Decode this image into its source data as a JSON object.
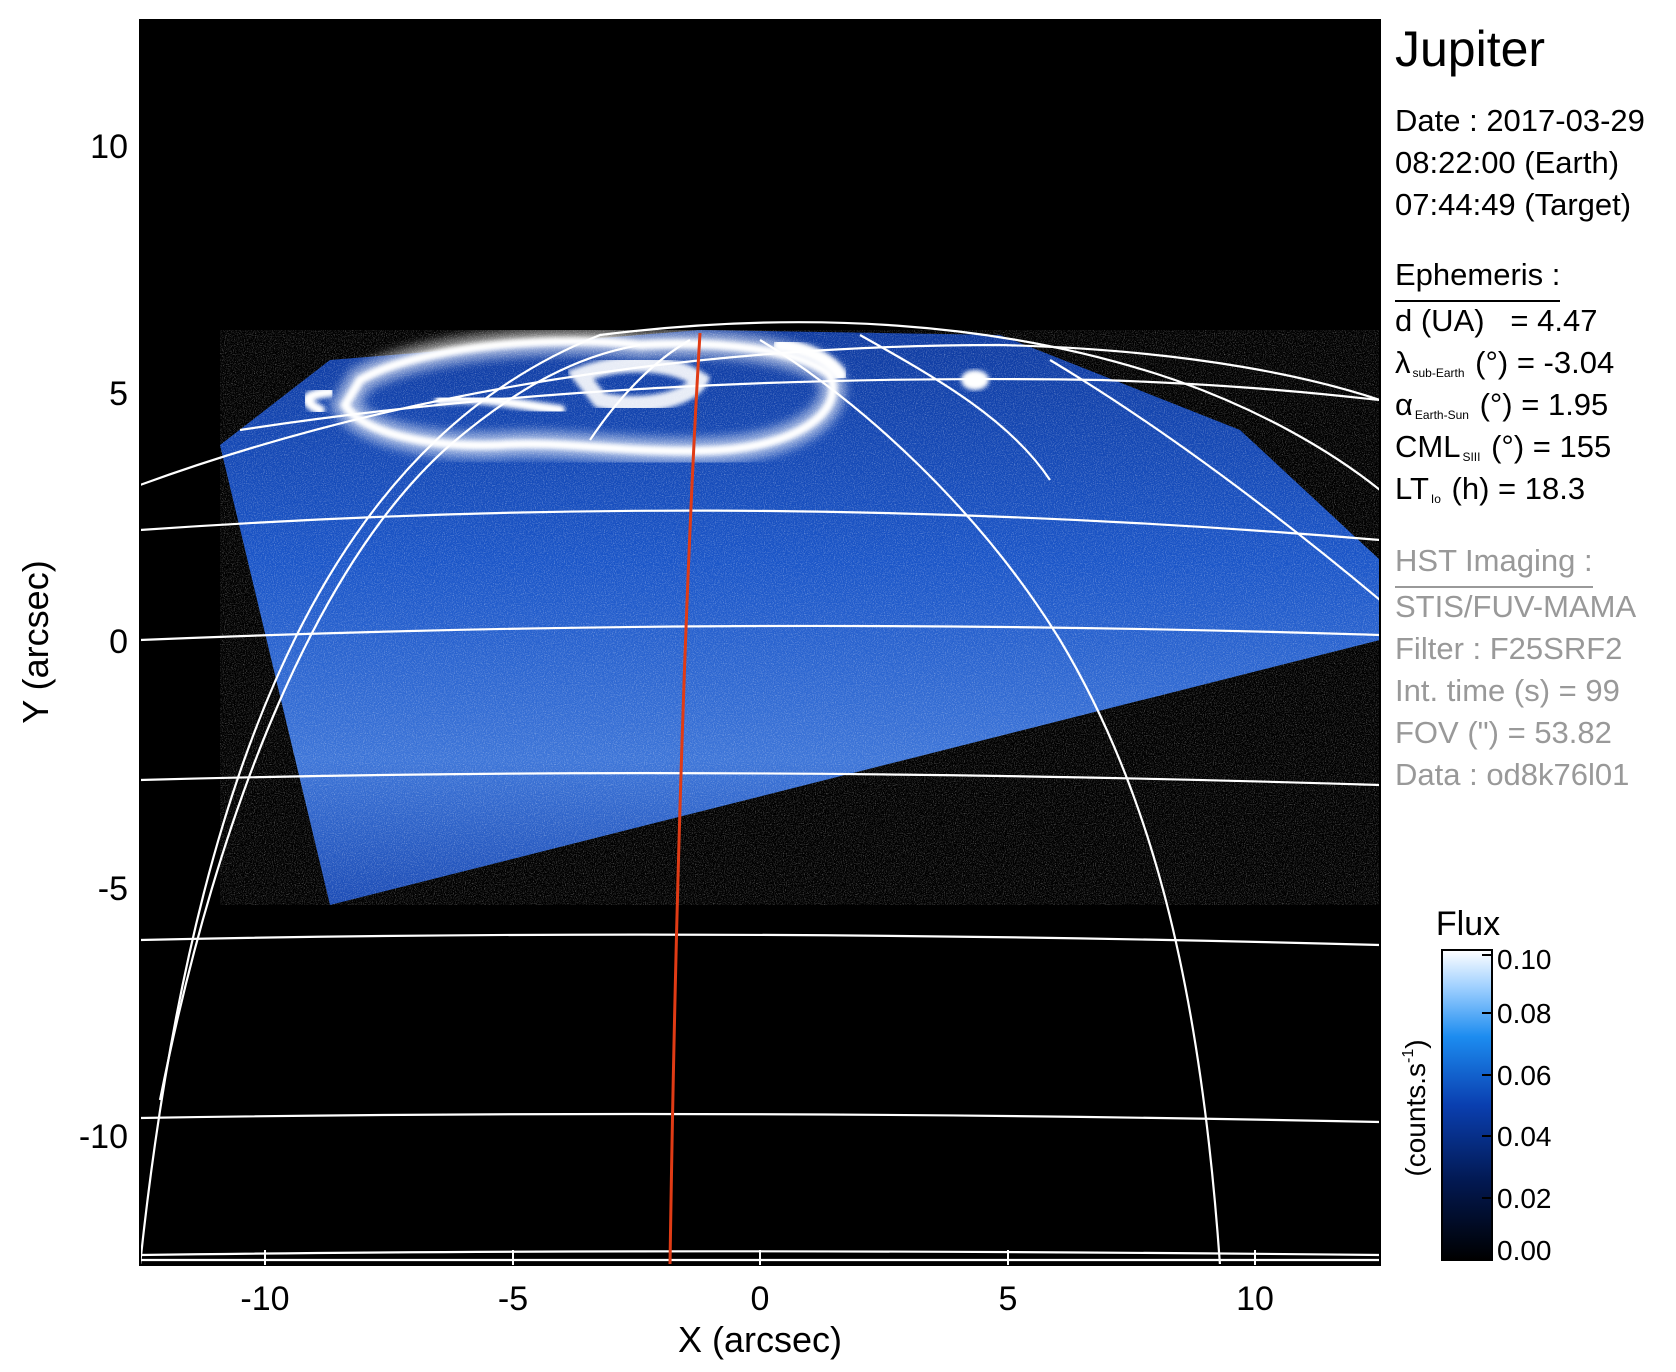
{
  "figure": {
    "title": "Jupiter",
    "date_line": "Date : 2017-03-29",
    "earth_time": "08:22:00 (Earth)",
    "target_time": "07:44:49 (Target)",
    "ephemeris": {
      "heading": "Ephemeris :",
      "d_label": "d (UA)",
      "d_value": "= 4.47",
      "lat_symbol": "λ",
      "lat_sub": "sub-Earth",
      "lat_rest": "(°) = -3.04",
      "alpha_symbol": "α",
      "alpha_sub": "Earth-Sun",
      "alpha_rest": "(°) = 1.95",
      "cml_main": "CML",
      "cml_sub": "SIII",
      "cml_rest": "(°) = 155",
      "lt_main": "LT",
      "lt_sub": "Io",
      "lt_rest": "(h) = 18.3"
    },
    "imaging": {
      "heading": "HST Imaging :",
      "instrument": "STIS/FUV-MAMA",
      "filter": "Filter : F25SRF2",
      "int_time": "Int. time (s) = 99",
      "fov": "FOV (\") = 53.82",
      "data_id": "Data : od8k76l01"
    },
    "colorbar": {
      "title": "Flux",
      "unit_main": "(counts.s",
      "unit_sup": "-1",
      "unit_close": ")",
      "ticks": [
        "0.10",
        "0.08",
        "0.06",
        "0.04",
        "0.02",
        "0.00"
      ],
      "range": [
        0.0,
        0.1
      ]
    },
    "axes": {
      "xlabel": "X (arcsec)",
      "ylabel": "Y (arcsec)",
      "xticks": [
        "-10",
        "-5",
        "0",
        "5",
        "10"
      ],
      "yticks": [
        "10",
        "5",
        "0",
        "-5",
        "-10"
      ],
      "xlim": [
        -12.5,
        12.5
      ],
      "ylim": [
        -12.5,
        12.5
      ]
    },
    "colors": {
      "background": "#000000",
      "grid": "#ffffff",
      "meridian": "#e03b15",
      "aurora": "#ffffff",
      "disk": "#1a4fc8"
    }
  }
}
